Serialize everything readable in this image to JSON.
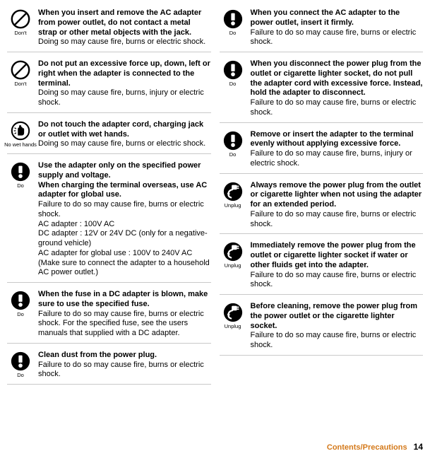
{
  "colors": {
    "border": "#c9c9c9",
    "text": "#000000",
    "footer_accent": "#d4791a",
    "bg": "#ffffff",
    "icon_do": "#000000"
  },
  "icon_label": {
    "dont": "Don't",
    "nowethands": "No wet hands",
    "do": "Do",
    "unplug": "Unplug"
  },
  "left": [
    {
      "icon": "dont",
      "bold": "When you insert and remove the AC adapter from power outlet, do not contact a metal strap or other metal objects with the jack.",
      "body": "Doing so may cause fire, burns or electric shock."
    },
    {
      "icon": "dont",
      "bold": "Do not put an excessive force up, down, left or right when the adapter is connected to the terminal.",
      "body": "Doing so may cause fire, burns, injury or electric shock."
    },
    {
      "icon": "nowethands",
      "bold": "Do not touch the adapter cord, charging jack or outlet with wet hands.",
      "body": "Doing so may cause fire, burns or electric shock."
    },
    {
      "icon": "do",
      "bold": "Use the adapter only on the specified power supply and voltage.\nWhen charging the terminal overseas, use AC adapter for global use.",
      "body": "Failure to do so may cause fire, burns or electric shock.\nAC adapter : 100V AC\nDC adapter : 12V or 24V DC (only for a negative-ground vehicle)\nAC adapter for global use : 100V to 240V AC (Make sure to connect the adapter to a household AC power outlet.)"
    },
    {
      "icon": "do",
      "bold": "When the fuse in a DC adapter is blown, make sure to use the specified fuse.",
      "body": "Failure to do so may cause fire, burns or electric shock. For the specified fuse, see the users manuals that supplied with a DC adapter."
    },
    {
      "icon": "do",
      "bold": "Clean dust from the power plug.",
      "body": "Failure to do so may cause fire, burns or electric shock."
    }
  ],
  "right": [
    {
      "icon": "do",
      "bold": "When you connect the AC adapter to the power outlet, insert it firmly.",
      "body": "Failure to do so may cause fire, burns or electric shock."
    },
    {
      "icon": "do",
      "bold": "When you disconnect the power plug from the outlet or cigarette lighter socket, do not pull the adapter cord with excessive force. Instead, hold the adapter to disconnect.",
      "body": "Failure to do so may cause fire, burns or electric shock."
    },
    {
      "icon": "do",
      "bold": "Remove or insert the adapter to the terminal evenly without applying excessive force.",
      "body": "Failure to do so may cause fire, burns, injury or electric shock."
    },
    {
      "icon": "unplug",
      "bold": "Always remove the power plug from the outlet or cigarette lighter when not using the adapter for an extended period.",
      "body": "Failure to do so may cause fire, burns or electric shock."
    },
    {
      "icon": "unplug",
      "bold": "Immediately remove the power plug from the outlet or cigarette lighter socket if water or other fluids get into the adapter.",
      "body": "Failure to do so may cause fire, burns or electric shock."
    },
    {
      "icon": "unplug",
      "bold": "Before cleaning, remove the power plug from the power outlet or the cigarette lighter socket.",
      "body": "Failure to do so may cause fire, burns or electric shock."
    }
  ],
  "footer": {
    "label": "Contents/Precautions",
    "page": "14"
  }
}
